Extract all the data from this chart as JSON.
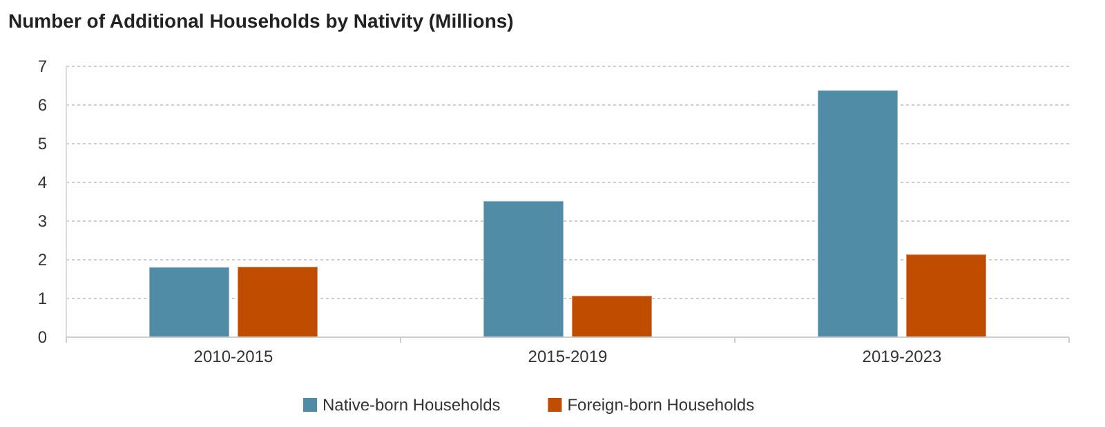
{
  "chart_data": {
    "type": "bar",
    "title": "Number of Additional Households by Nativity (Millions)",
    "categories": [
      "2010-2015",
      "2015-2019",
      "2019-2023"
    ],
    "series": [
      {
        "name": "Native-born Households",
        "color": "#508ca6",
        "values": [
          1.81,
          3.52,
          6.38
        ]
      },
      {
        "name": "Foreign-born Households",
        "color": "#c04c00",
        "values": [
          1.82,
          1.07,
          2.14
        ]
      }
    ],
    "ylim": [
      0,
      7
    ],
    "yticks": [
      0,
      1,
      2,
      3,
      4,
      5,
      6,
      7
    ],
    "grid": "y",
    "legend": "bottom"
  }
}
